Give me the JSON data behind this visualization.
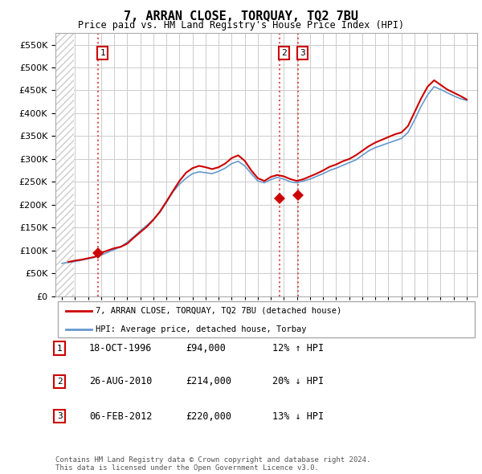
{
  "title": "7, ARRAN CLOSE, TORQUAY, TQ2 7BU",
  "subtitle": "Price paid vs. HM Land Registry's House Price Index (HPI)",
  "legend_line1": "7, ARRAN CLOSE, TORQUAY, TQ2 7BU (detached house)",
  "legend_line2": "HPI: Average price, detached house, Torbay",
  "sales": [
    {
      "num": 1,
      "date": 1996.79,
      "price": 94000,
      "label": "1"
    },
    {
      "num": 2,
      "date": 2010.65,
      "price": 214000,
      "label": "2"
    },
    {
      "num": 3,
      "date": 2012.09,
      "price": 220000,
      "label": "3"
    }
  ],
  "sale_rows": [
    {
      "num": "1",
      "date_str": "18-OCT-1996",
      "price_str": "£94,000",
      "pct_str": "12% ↑ HPI"
    },
    {
      "num": "2",
      "date_str": "26-AUG-2010",
      "price_str": "£214,000",
      "pct_str": "20% ↓ HPI"
    },
    {
      "num": "3",
      "date_str": "06-FEB-2012",
      "price_str": "£220,000",
      "pct_str": "13% ↓ HPI"
    }
  ],
  "footer": "Contains HM Land Registry data © Crown copyright and database right 2024.\nThis data is licensed under the Open Government Licence v3.0.",
  "red_line_color": "#cc0000",
  "blue_line_color": "#6699cc",
  "hatch_color": "#cccccc",
  "grid_color": "#cccccc",
  "dashed_color": "#dd4444",
  "ylim": [
    0,
    575000
  ],
  "yticks": [
    0,
    50000,
    100000,
    150000,
    200000,
    250000,
    300000,
    350000,
    400000,
    450000,
    500000,
    550000
  ],
  "xlim_start": 1993.5,
  "xlim_end": 2025.8,
  "hatch_end": 1994.92,
  "hpi_data": [
    [
      1994.0,
      72000
    ],
    [
      1994.5,
      74000
    ],
    [
      1995.0,
      76000
    ],
    [
      1995.5,
      79000
    ],
    [
      1996.0,
      82000
    ],
    [
      1996.5,
      85000
    ],
    [
      1997.0,
      90000
    ],
    [
      1997.5,
      96000
    ],
    [
      1998.0,
      102000
    ],
    [
      1998.5,
      108000
    ],
    [
      1999.0,
      118000
    ],
    [
      1999.5,
      130000
    ],
    [
      2000.0,
      143000
    ],
    [
      2000.5,
      155000
    ],
    [
      2001.0,
      168000
    ],
    [
      2001.5,
      183000
    ],
    [
      2002.0,
      205000
    ],
    [
      2002.5,
      228000
    ],
    [
      2003.0,
      245000
    ],
    [
      2003.5,
      258000
    ],
    [
      2004.0,
      268000
    ],
    [
      2004.5,
      272000
    ],
    [
      2005.0,
      270000
    ],
    [
      2005.5,
      268000
    ],
    [
      2006.0,
      273000
    ],
    [
      2006.5,
      280000
    ],
    [
      2007.0,
      290000
    ],
    [
      2007.5,
      295000
    ],
    [
      2008.0,
      285000
    ],
    [
      2008.5,
      268000
    ],
    [
      2009.0,
      252000
    ],
    [
      2009.5,
      248000
    ],
    [
      2010.0,
      255000
    ],
    [
      2010.5,
      260000
    ],
    [
      2011.0,
      256000
    ],
    [
      2011.5,
      250000
    ],
    [
      2012.0,
      248000
    ],
    [
      2012.5,
      252000
    ],
    [
      2013.0,
      256000
    ],
    [
      2013.5,
      262000
    ],
    [
      2014.0,
      268000
    ],
    [
      2014.5,
      275000
    ],
    [
      2015.0,
      280000
    ],
    [
      2015.5,
      286000
    ],
    [
      2016.0,
      292000
    ],
    [
      2016.5,
      298000
    ],
    [
      2017.0,
      308000
    ],
    [
      2017.5,
      318000
    ],
    [
      2018.0,
      325000
    ],
    [
      2018.5,
      330000
    ],
    [
      2019.0,
      335000
    ],
    [
      2019.5,
      340000
    ],
    [
      2020.0,
      345000
    ],
    [
      2020.5,
      358000
    ],
    [
      2021.0,
      385000
    ],
    [
      2021.5,
      415000
    ],
    [
      2022.0,
      440000
    ],
    [
      2022.5,
      458000
    ],
    [
      2023.0,
      452000
    ],
    [
      2023.5,
      445000
    ],
    [
      2024.0,
      438000
    ],
    [
      2024.5,
      432000
    ],
    [
      2025.0,
      428000
    ]
  ],
  "red_data": [
    [
      1994.5,
      75000
    ],
    [
      1995.0,
      78000
    ],
    [
      1995.5,
      80000
    ],
    [
      1996.0,
      83000
    ],
    [
      1996.5,
      86000
    ],
    [
      1997.0,
      95000
    ],
    [
      1997.5,
      100000
    ],
    [
      1998.0,
      105000
    ],
    [
      1998.5,
      108000
    ],
    [
      1999.0,
      115000
    ],
    [
      1999.5,
      128000
    ],
    [
      2000.0,
      140000
    ],
    [
      2000.5,
      152000
    ],
    [
      2001.0,
      167000
    ],
    [
      2001.5,
      185000
    ],
    [
      2002.0,
      207000
    ],
    [
      2002.5,
      230000
    ],
    [
      2003.0,
      252000
    ],
    [
      2003.5,
      270000
    ],
    [
      2004.0,
      280000
    ],
    [
      2004.5,
      285000
    ],
    [
      2005.0,
      282000
    ],
    [
      2005.5,
      278000
    ],
    [
      2006.0,
      282000
    ],
    [
      2006.5,
      290000
    ],
    [
      2007.0,
      302000
    ],
    [
      2007.5,
      308000
    ],
    [
      2008.0,
      296000
    ],
    [
      2008.5,
      275000
    ],
    [
      2009.0,
      258000
    ],
    [
      2009.5,
      252000
    ],
    [
      2010.0,
      261000
    ],
    [
      2010.5,
      265000
    ],
    [
      2011.0,
      262000
    ],
    [
      2011.5,
      256000
    ],
    [
      2012.0,
      252000
    ],
    [
      2012.5,
      256000
    ],
    [
      2013.0,
      262000
    ],
    [
      2013.5,
      268000
    ],
    [
      2014.0,
      275000
    ],
    [
      2014.5,
      283000
    ],
    [
      2015.0,
      288000
    ],
    [
      2015.5,
      295000
    ],
    [
      2016.0,
      300000
    ],
    [
      2016.5,
      308000
    ],
    [
      2017.0,
      318000
    ],
    [
      2017.5,
      328000
    ],
    [
      2018.0,
      336000
    ],
    [
      2018.5,
      342000
    ],
    [
      2019.0,
      348000
    ],
    [
      2019.5,
      354000
    ],
    [
      2020.0,
      358000
    ],
    [
      2020.5,
      372000
    ],
    [
      2021.0,
      402000
    ],
    [
      2021.5,
      432000
    ],
    [
      2022.0,
      458000
    ],
    [
      2022.5,
      472000
    ],
    [
      2023.0,
      462000
    ],
    [
      2023.5,
      452000
    ],
    [
      2024.0,
      445000
    ],
    [
      2024.5,
      438000
    ],
    [
      2025.0,
      430000
    ]
  ]
}
